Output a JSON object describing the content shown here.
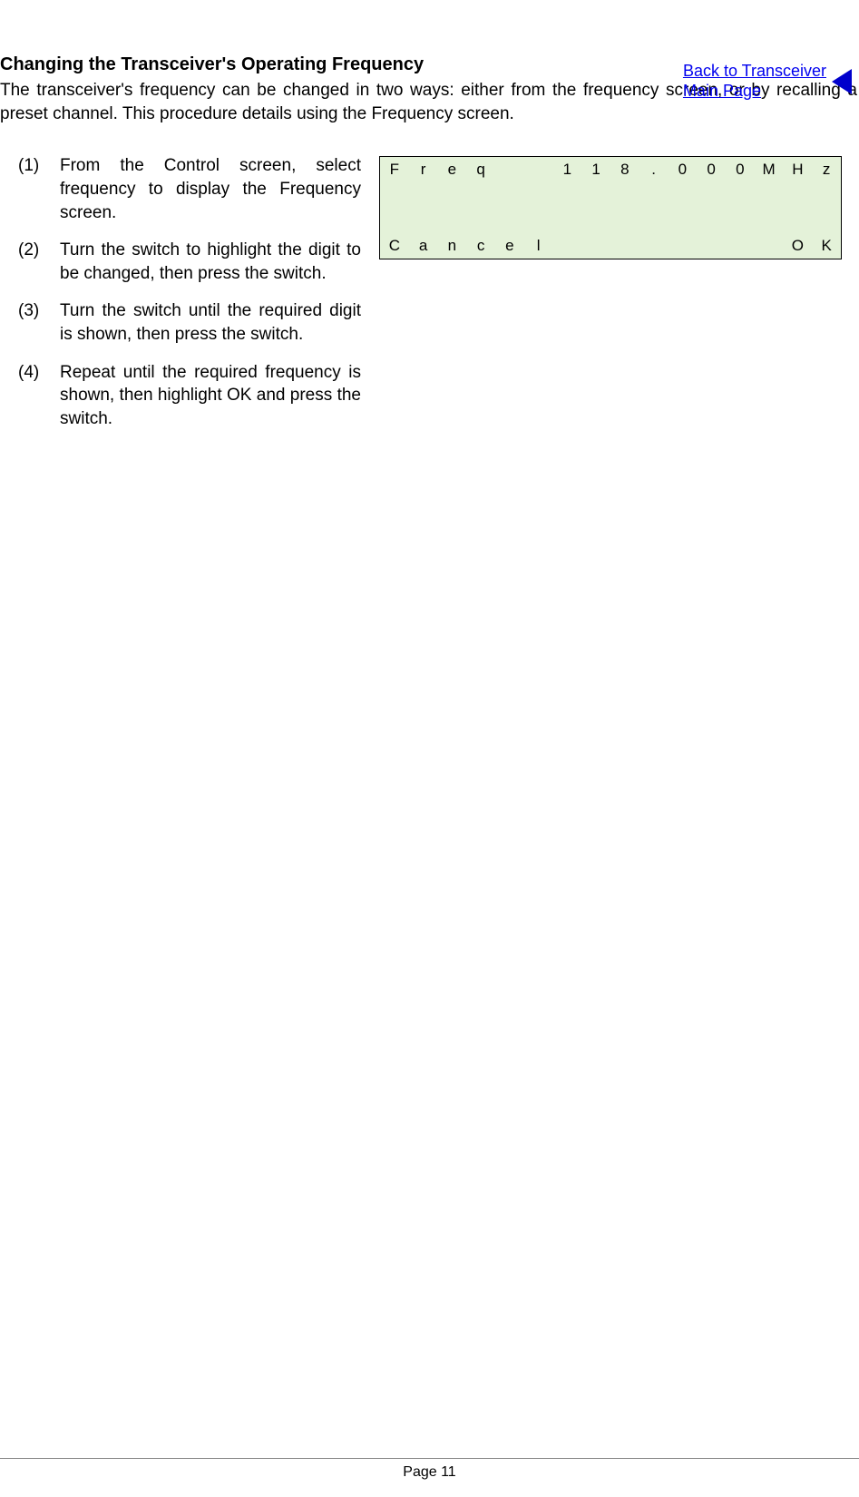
{
  "nav": {
    "back_line1": "Back to Transceiver",
    "back_line2": "Main Page"
  },
  "heading": "Changing the Transceiver's Operating Frequency",
  "intro": "The transceiver's frequency can be changed in two ways: either from the frequency screen, or by recalling a preset channel. This procedure details using the Frequency screen.",
  "steps": [
    {
      "num": "(1)",
      "text": "From the Control screen, select frequency to display the Frequency screen."
    },
    {
      "num": "(2)",
      "text": "Turn the switch to highlight the digit to be changed, then press the switch."
    },
    {
      "num": "(3)",
      "text": "Turn the switch until the required digit is shown, then press the switch."
    },
    {
      "num": "(4)",
      "text": "Repeat until the required frequency is shown, then highlight OK and press the switch."
    }
  ],
  "lcd": {
    "cols": 16,
    "rows": [
      [
        "F",
        "r",
        "e",
        "q",
        "",
        "",
        "1",
        "1",
        "8",
        ".",
        "0",
        "0",
        "0",
        "M",
        "H",
        "z"
      ],
      [
        "",
        "",
        "",
        "",
        "",
        "",
        "",
        "",
        "",
        "",
        "",
        "",
        "",
        "",
        "",
        ""
      ],
      [
        "",
        "",
        "",
        "",
        "",
        "",
        "",
        "",
        "",
        "",
        "",
        "",
        "",
        "",
        "",
        ""
      ],
      [
        "C",
        "a",
        "n",
        "c",
        "e",
        "l",
        "",
        "",
        "",
        "",
        "",
        "",
        "",
        "",
        "O",
        "K"
      ]
    ],
    "background_color": "#e4f2d9",
    "border_color": "#000000",
    "text_color": "#000000",
    "font_size": 17
  },
  "footer": {
    "page": "Page 11"
  },
  "colors": {
    "link": "#0000ee",
    "triangle": "#0000cc"
  }
}
